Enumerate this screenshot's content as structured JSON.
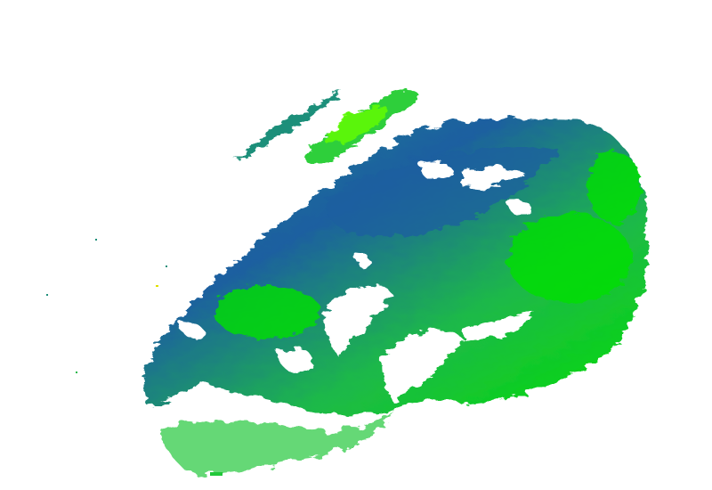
{
  "radar": {
    "palette": {
      "background": "#ffffff",
      "low": "#1a5fa0",
      "mid_low": "#1e8c8c",
      "mid": "#1fb84a",
      "high": "#00e000",
      "peak": "#66ff00",
      "spot": "#e0e000"
    }
  }
}
